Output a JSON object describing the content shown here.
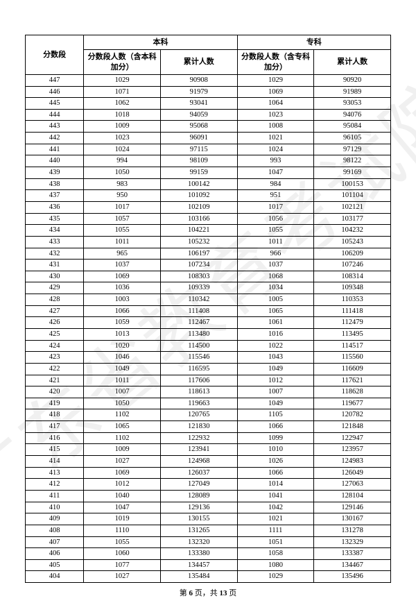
{
  "watermark_text": "广东省教育考试院",
  "footer": {
    "prefix": "第",
    "page": "6",
    "mid": "页，共",
    "total": "13",
    "suffix": "页"
  },
  "headers": {
    "score": "分数段",
    "undergrad": "本科",
    "junior": "专科",
    "seg_count_u": "分数段人数（含本科加分）",
    "cum_u": "累计人数",
    "seg_count_j": "分数段人数（含专科加分）",
    "cum_j": "累计人数"
  },
  "rows": [
    {
      "s": "447",
      "a": "1029",
      "b": "90908",
      "c": "1029",
      "d": "90920"
    },
    {
      "s": "446",
      "a": "1071",
      "b": "91979",
      "c": "1069",
      "d": "91989"
    },
    {
      "s": "445",
      "a": "1062",
      "b": "93041",
      "c": "1064",
      "d": "93053"
    },
    {
      "s": "444",
      "a": "1018",
      "b": "94059",
      "c": "1023",
      "d": "94076"
    },
    {
      "s": "443",
      "a": "1009",
      "b": "95068",
      "c": "1008",
      "d": "95084"
    },
    {
      "s": "442",
      "a": "1023",
      "b": "96091",
      "c": "1021",
      "d": "96105"
    },
    {
      "s": "441",
      "a": "1024",
      "b": "97115",
      "c": "1024",
      "d": "97129"
    },
    {
      "s": "440",
      "a": "994",
      "b": "98109",
      "c": "993",
      "d": "98122"
    },
    {
      "s": "439",
      "a": "1050",
      "b": "99159",
      "c": "1047",
      "d": "99169"
    },
    {
      "s": "438",
      "a": "983",
      "b": "100142",
      "c": "984",
      "d": "100153"
    },
    {
      "s": "437",
      "a": "950",
      "b": "101092",
      "c": "951",
      "d": "101104"
    },
    {
      "s": "436",
      "a": "1017",
      "b": "102109",
      "c": "1017",
      "d": "102121"
    },
    {
      "s": "435",
      "a": "1057",
      "b": "103166",
      "c": "1056",
      "d": "103177"
    },
    {
      "s": "434",
      "a": "1055",
      "b": "104221",
      "c": "1055",
      "d": "104232"
    },
    {
      "s": "433",
      "a": "1011",
      "b": "105232",
      "c": "1011",
      "d": "105243"
    },
    {
      "s": "432",
      "a": "965",
      "b": "106197",
      "c": "966",
      "d": "106209"
    },
    {
      "s": "431",
      "a": "1037",
      "b": "107234",
      "c": "1037",
      "d": "107246"
    },
    {
      "s": "430",
      "a": "1069",
      "b": "108303",
      "c": "1068",
      "d": "108314"
    },
    {
      "s": "429",
      "a": "1036",
      "b": "109339",
      "c": "1034",
      "d": "109348"
    },
    {
      "s": "428",
      "a": "1003",
      "b": "110342",
      "c": "1005",
      "d": "110353"
    },
    {
      "s": "427",
      "a": "1066",
      "b": "111408",
      "c": "1065",
      "d": "111418"
    },
    {
      "s": "426",
      "a": "1059",
      "b": "112467",
      "c": "1061",
      "d": "112479"
    },
    {
      "s": "425",
      "a": "1013",
      "b": "113480",
      "c": "1016",
      "d": "113495"
    },
    {
      "s": "424",
      "a": "1020",
      "b": "114500",
      "c": "1022",
      "d": "114517"
    },
    {
      "s": "423",
      "a": "1046",
      "b": "115546",
      "c": "1043",
      "d": "115560"
    },
    {
      "s": "422",
      "a": "1049",
      "b": "116595",
      "c": "1049",
      "d": "116609"
    },
    {
      "s": "421",
      "a": "1011",
      "b": "117606",
      "c": "1012",
      "d": "117621"
    },
    {
      "s": "420",
      "a": "1007",
      "b": "118613",
      "c": "1007",
      "d": "118628"
    },
    {
      "s": "419",
      "a": "1050",
      "b": "119663",
      "c": "1049",
      "d": "119677"
    },
    {
      "s": "418",
      "a": "1102",
      "b": "120765",
      "c": "1105",
      "d": "120782"
    },
    {
      "s": "417",
      "a": "1065",
      "b": "121830",
      "c": "1066",
      "d": "121848"
    },
    {
      "s": "416",
      "a": "1102",
      "b": "122932",
      "c": "1099",
      "d": "122947"
    },
    {
      "s": "415",
      "a": "1009",
      "b": "123941",
      "c": "1010",
      "d": "123957"
    },
    {
      "s": "414",
      "a": "1027",
      "b": "124968",
      "c": "1026",
      "d": "124983"
    },
    {
      "s": "413",
      "a": "1069",
      "b": "126037",
      "c": "1066",
      "d": "126049"
    },
    {
      "s": "412",
      "a": "1012",
      "b": "127049",
      "c": "1014",
      "d": "127063"
    },
    {
      "s": "411",
      "a": "1040",
      "b": "128089",
      "c": "1041",
      "d": "128104"
    },
    {
      "s": "410",
      "a": "1047",
      "b": "129136",
      "c": "1042",
      "d": "129146"
    },
    {
      "s": "409",
      "a": "1019",
      "b": "130155",
      "c": "1021",
      "d": "130167"
    },
    {
      "s": "408",
      "a": "1110",
      "b": "131265",
      "c": "1111",
      "d": "131278"
    },
    {
      "s": "407",
      "a": "1055",
      "b": "132320",
      "c": "1051",
      "d": "132329"
    },
    {
      "s": "406",
      "a": "1060",
      "b": "133380",
      "c": "1058",
      "d": "133387"
    },
    {
      "s": "405",
      "a": "1077",
      "b": "134457",
      "c": "1080",
      "d": "134467"
    },
    {
      "s": "404",
      "a": "1027",
      "b": "135484",
      "c": "1029",
      "d": "135496"
    }
  ]
}
